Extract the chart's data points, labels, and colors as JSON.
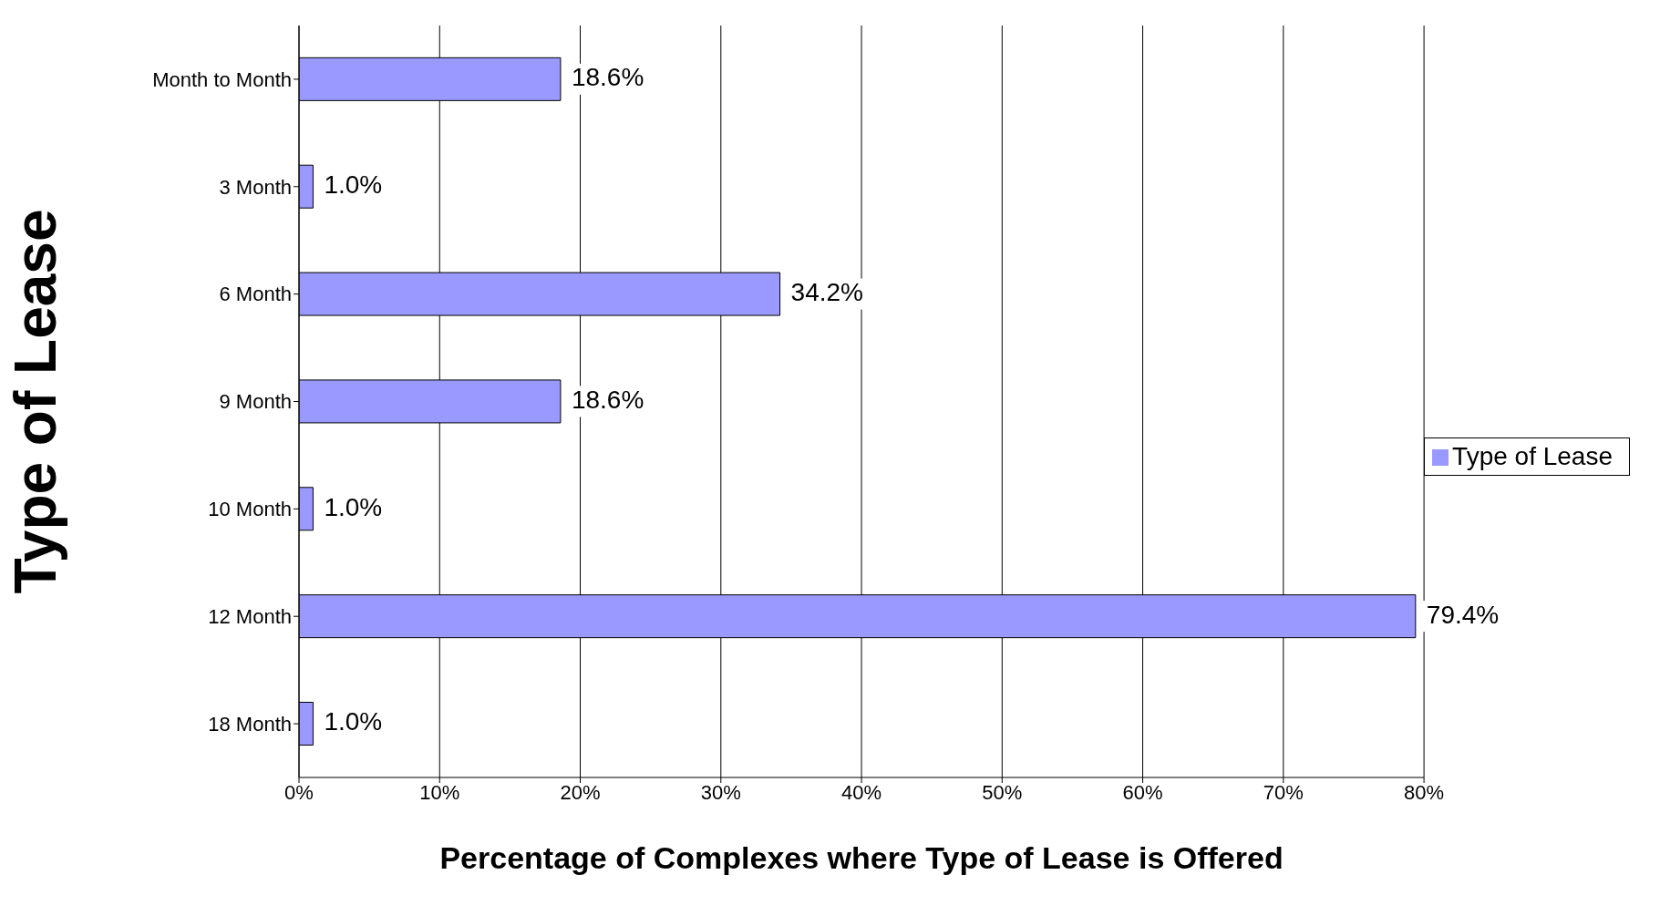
{
  "chart_data": {
    "type": "bar",
    "orientation": "horizontal",
    "xlabel": "Percentage of Complexes where Type of Lease is Offered",
    "ylabel": "Type of Lease",
    "categories": [
      "Month to Month",
      "3 Month",
      "6 Month",
      "9 Month",
      "10 Month",
      "12 Month",
      "18 Month"
    ],
    "series": [
      {
        "name": "Type of Lease",
        "color": "#9999ff",
        "values": [
          18.6,
          1.0,
          34.2,
          18.6,
          1.0,
          79.4,
          1.0
        ],
        "value_labels": [
          "18.6%",
          "1.0%",
          "34.2%",
          "18.6%",
          "1.0%",
          "79.4%",
          "1.0%"
        ]
      }
    ],
    "xlim": [
      0,
      80
    ],
    "xticks": [
      {
        "value": 0,
        "label": "0%"
      },
      {
        "value": 10,
        "label": "10%"
      },
      {
        "value": 20,
        "label": "20%"
      },
      {
        "value": 30,
        "label": "30%"
      },
      {
        "value": 40,
        "label": "40%"
      },
      {
        "value": 50,
        "label": "50%"
      },
      {
        "value": 60,
        "label": "60%"
      },
      {
        "value": 70,
        "label": "70%"
      },
      {
        "value": 80,
        "label": "80%"
      }
    ],
    "grid": "x",
    "legend": "right"
  }
}
